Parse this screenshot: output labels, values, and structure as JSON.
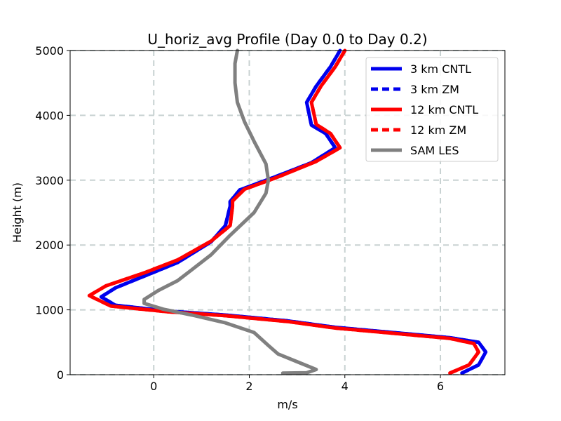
{
  "chart_data": {
    "type": "line",
    "title": "U_horiz_avg Profile (Day 0.0 to Day 0.2)",
    "xlabel": "m/s",
    "ylabel": "Height (m)",
    "xlim": [
      -1.75,
      7.35
    ],
    "ylim": [
      0,
      5000
    ],
    "xticks": [
      0,
      2,
      4,
      6
    ],
    "yticks": [
      0,
      1000,
      2000,
      3000,
      4000,
      5000
    ],
    "xtick_labels": [
      "0",
      "2",
      "4",
      "6"
    ],
    "ytick_labels": [
      "0",
      "1000",
      "2000",
      "3000",
      "4000",
      "5000"
    ],
    "grid": true,
    "legend_position": "top-right",
    "series": [
      {
        "name": "3 km CNTL",
        "color": "#0000ee",
        "style": "solid",
        "points": [
          [
            6.45,
            25
          ],
          [
            6.8,
            150
          ],
          [
            6.95,
            350
          ],
          [
            6.8,
            500
          ],
          [
            6.2,
            570
          ],
          [
            5.0,
            650
          ],
          [
            3.8,
            730
          ],
          [
            2.8,
            830
          ],
          [
            1.5,
            920
          ],
          [
            0.3,
            980
          ],
          [
            -0.8,
            1070
          ],
          [
            -1.1,
            1200
          ],
          [
            -0.8,
            1340
          ],
          [
            -0.1,
            1550
          ],
          [
            0.5,
            1730
          ],
          [
            1.2,
            2050
          ],
          [
            1.5,
            2300
          ],
          [
            1.6,
            2600
          ],
          [
            1.6,
            2670
          ],
          [
            1.8,
            2850
          ],
          [
            2.5,
            3040
          ],
          [
            3.3,
            3270
          ],
          [
            3.8,
            3500
          ],
          [
            3.6,
            3720
          ],
          [
            3.3,
            3850
          ],
          [
            3.2,
            4200
          ],
          [
            3.4,
            4450
          ],
          [
            3.7,
            4750
          ],
          [
            3.9,
            5000
          ]
        ]
      },
      {
        "name": "3 km ZM",
        "color": "#0000ee",
        "style": "dashed",
        "points": [
          [
            6.45,
            25
          ],
          [
            6.8,
            150
          ],
          [
            6.95,
            350
          ],
          [
            6.8,
            500
          ],
          [
            6.2,
            570
          ],
          [
            5.0,
            650
          ],
          [
            3.8,
            730
          ],
          [
            2.8,
            830
          ],
          [
            1.5,
            920
          ],
          [
            0.3,
            980
          ],
          [
            -0.8,
            1070
          ],
          [
            -1.1,
            1200
          ],
          [
            -0.8,
            1340
          ],
          [
            -0.1,
            1550
          ],
          [
            0.5,
            1730
          ],
          [
            1.2,
            2050
          ],
          [
            1.5,
            2300
          ],
          [
            1.6,
            2600
          ],
          [
            1.6,
            2670
          ],
          [
            1.8,
            2850
          ],
          [
            2.5,
            3040
          ],
          [
            3.3,
            3270
          ],
          [
            3.8,
            3500
          ],
          [
            3.6,
            3720
          ],
          [
            3.3,
            3850
          ],
          [
            3.2,
            4200
          ],
          [
            3.4,
            4450
          ],
          [
            3.7,
            4750
          ],
          [
            3.9,
            5000
          ]
        ]
      },
      {
        "name": "12 km CNTL",
        "color": "#ff0000",
        "style": "solid",
        "points": [
          [
            6.2,
            25
          ],
          [
            6.6,
            150
          ],
          [
            6.8,
            350
          ],
          [
            6.7,
            480
          ],
          [
            6.2,
            560
          ],
          [
            5.0,
            640
          ],
          [
            3.8,
            720
          ],
          [
            2.8,
            820
          ],
          [
            1.5,
            910
          ],
          [
            0.3,
            970
          ],
          [
            -0.9,
            1060
          ],
          [
            -1.35,
            1220
          ],
          [
            -1.0,
            1370
          ],
          [
            -0.2,
            1570
          ],
          [
            0.5,
            1770
          ],
          [
            1.2,
            2060
          ],
          [
            1.6,
            2300
          ],
          [
            1.65,
            2600
          ],
          [
            1.65,
            2680
          ],
          [
            1.9,
            2860
          ],
          [
            2.6,
            3050
          ],
          [
            3.4,
            3290
          ],
          [
            3.9,
            3500
          ],
          [
            3.7,
            3720
          ],
          [
            3.4,
            3860
          ],
          [
            3.3,
            4200
          ],
          [
            3.5,
            4450
          ],
          [
            3.8,
            4750
          ],
          [
            4.0,
            5000
          ]
        ]
      },
      {
        "name": "12 km ZM",
        "color": "#ff0000",
        "style": "dashed",
        "points": [
          [
            6.2,
            25
          ],
          [
            6.6,
            150
          ],
          [
            6.8,
            350
          ],
          [
            6.7,
            480
          ],
          [
            6.2,
            560
          ],
          [
            5.0,
            640
          ],
          [
            3.8,
            720
          ],
          [
            2.8,
            820
          ],
          [
            1.5,
            910
          ],
          [
            0.3,
            970
          ],
          [
            -0.9,
            1060
          ],
          [
            -1.35,
            1220
          ],
          [
            -1.0,
            1370
          ],
          [
            -0.2,
            1570
          ],
          [
            0.5,
            1770
          ],
          [
            1.2,
            2060
          ],
          [
            1.6,
            2300
          ],
          [
            1.65,
            2600
          ],
          [
            1.65,
            2680
          ],
          [
            1.9,
            2860
          ],
          [
            2.6,
            3050
          ],
          [
            3.4,
            3290
          ],
          [
            3.9,
            3500
          ],
          [
            3.7,
            3720
          ],
          [
            3.4,
            3860
          ],
          [
            3.3,
            4200
          ],
          [
            3.5,
            4450
          ],
          [
            3.8,
            4750
          ],
          [
            4.0,
            5000
          ]
        ]
      },
      {
        "name": "SAM LES",
        "color": "#808080",
        "style": "solid",
        "points": [
          [
            2.7,
            25
          ],
          [
            3.2,
            30
          ],
          [
            3.4,
            80
          ],
          [
            3.0,
            200
          ],
          [
            2.6,
            320
          ],
          [
            2.4,
            450
          ],
          [
            2.1,
            650
          ],
          [
            1.5,
            800
          ],
          [
            0.8,
            920
          ],
          [
            0.2,
            1010
          ],
          [
            -0.2,
            1100
          ],
          [
            -0.2,
            1160
          ],
          [
            0.1,
            1300
          ],
          [
            0.5,
            1450
          ],
          [
            0.8,
            1620
          ],
          [
            1.2,
            1850
          ],
          [
            1.6,
            2150
          ],
          [
            2.1,
            2500
          ],
          [
            2.35,
            2800
          ],
          [
            2.4,
            3000
          ],
          [
            2.35,
            3250
          ],
          [
            2.1,
            3600
          ],
          [
            1.9,
            3900
          ],
          [
            1.75,
            4200
          ],
          [
            1.7,
            4500
          ],
          [
            1.7,
            4800
          ],
          [
            1.75,
            5000
          ]
        ]
      }
    ]
  }
}
